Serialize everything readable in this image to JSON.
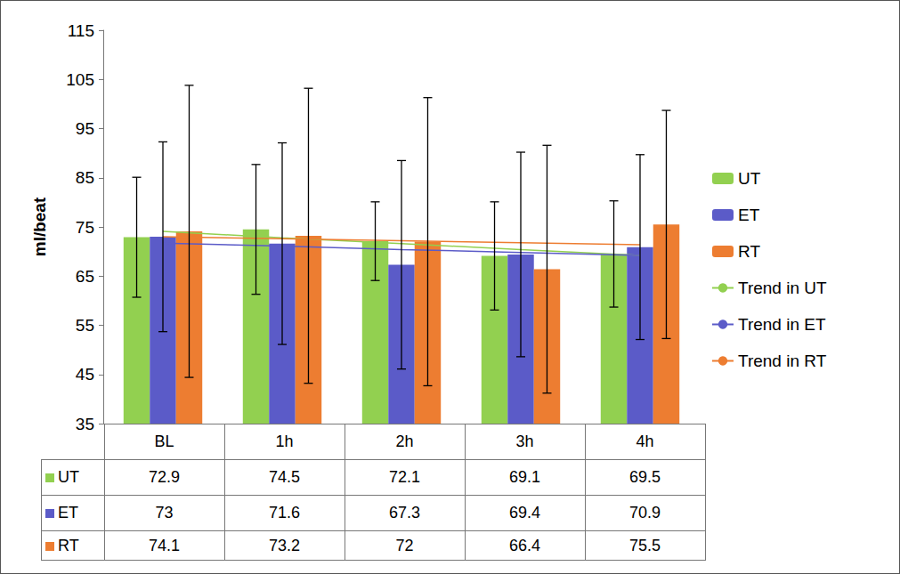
{
  "chart_data": {
    "type": "bar",
    "y_label": "ml/beat",
    "categories": [
      "BL",
      "1h",
      "2h",
      "3h",
      "4h"
    ],
    "ylim": [
      35,
      115
    ],
    "yticks": [
      35,
      45,
      55,
      65,
      75,
      85,
      95,
      105,
      115
    ],
    "grid": false,
    "legend": "right",
    "series": [
      {
        "name": "UT",
        "type": "bar",
        "color": "#92d050",
        "values": [
          72.9,
          74.5,
          72.1,
          69.1,
          69.5
        ],
        "errors": [
          12.2,
          13.2,
          8.0,
          11.0,
          10.8
        ]
      },
      {
        "name": "ET",
        "type": "bar",
        "color": "#5b5bc8",
        "values": [
          73,
          71.6,
          67.3,
          69.4,
          70.9
        ],
        "errors": [
          19.3,
          20.5,
          21.2,
          20.8,
          18.8
        ]
      },
      {
        "name": "RT",
        "type": "bar",
        "color": "#ed7d31",
        "values": [
          74.1,
          73.2,
          72,
          66.4,
          75.5
        ],
        "errors": [
          29.7,
          30.0,
          29.3,
          25.2,
          23.2
        ]
      },
      {
        "name": "Trend in UT",
        "type": "line",
        "color": "#92d050",
        "values": [
          74.1,
          72.8,
          71.6,
          70.4,
          69.2
        ]
      },
      {
        "name": "Trend in ET",
        "type": "line",
        "color": "#5b5bc8",
        "values": [
          71.7,
          71.1,
          70.4,
          69.8,
          69.2
        ]
      },
      {
        "name": "Trend in RT",
        "type": "line",
        "color": "#ed7d31",
        "values": [
          73.0,
          72.6,
          72.2,
          71.8,
          71.4
        ]
      }
    ]
  }
}
